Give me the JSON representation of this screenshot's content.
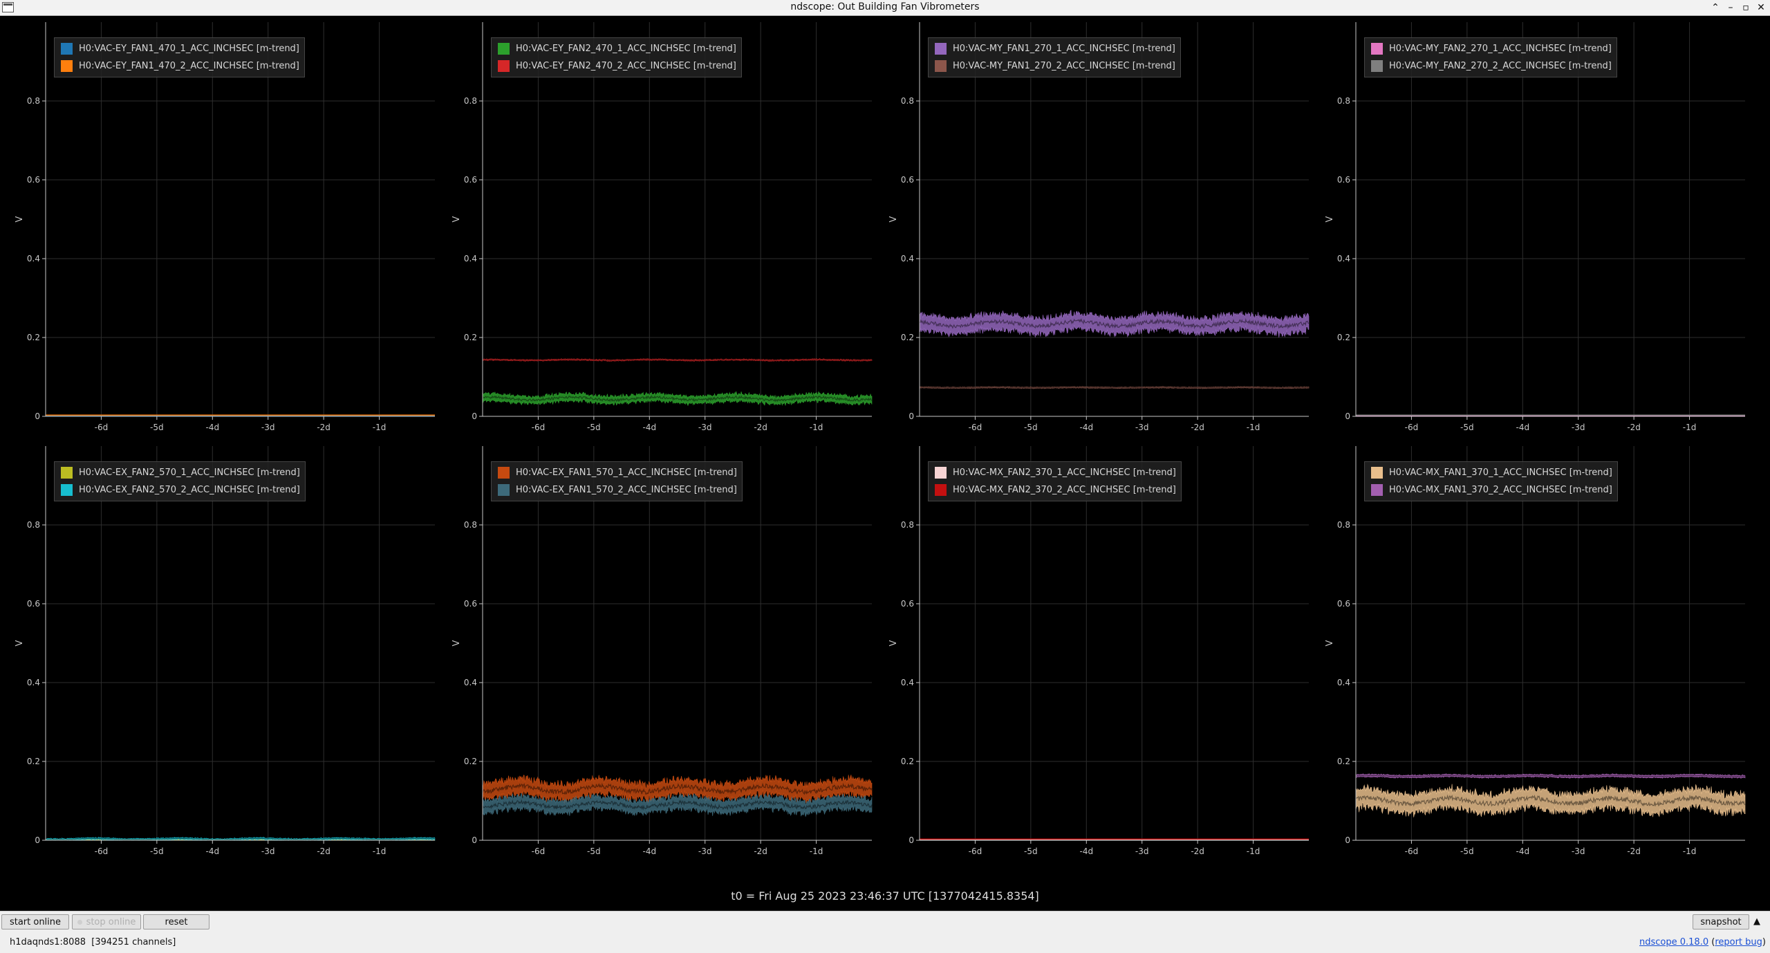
{
  "window": {
    "title": "ndscope: Out Building Fan Vibrometers"
  },
  "colors": {
    "background": "#000000",
    "axis": "#c8c8c8",
    "grid": "#2e2e2e"
  },
  "t0_label": "t0 = Fri Aug 25 2023 23:46:37 UTC [1377042415.8354]",
  "buttons": {
    "start_online": "start online",
    "stop_online": "stop online",
    "reset": "reset",
    "snapshot": "snapshot"
  },
  "status": {
    "server": "h1daqnds1:8088",
    "channels": "[394251 channels]"
  },
  "version": {
    "name": "ndscope 0.18.0",
    "report": "report bug"
  },
  "chart_data": [
    {
      "type": "line",
      "ylabel": "V",
      "ylim": [
        0,
        1
      ],
      "xlim": [
        -7,
        0
      ],
      "yticks": [
        "0",
        "0.2",
        "0.4",
        "0.6",
        "0.8"
      ],
      "xticks": [
        "-6d",
        "-5d",
        "-4d",
        "-3d",
        "-2d",
        "-1d"
      ],
      "series": [
        {
          "name": "H0:VAC-EY_FAN1_470_1_ACC_INCHSEC [m-trend]",
          "color": "#1f77b4",
          "mean": 0.002,
          "spread": 0.0,
          "noise": 0.0
        },
        {
          "name": "H0:VAC-EY_FAN1_470_2_ACC_INCHSEC [m-trend]",
          "color": "#ff7f0e",
          "mean": 0.003,
          "spread": 0.0,
          "noise": 0.0
        }
      ]
    },
    {
      "type": "line",
      "ylabel": "V",
      "ylim": [
        0,
        1
      ],
      "xlim": [
        -7,
        0
      ],
      "yticks": [
        "0",
        "0.2",
        "0.4",
        "0.6",
        "0.8"
      ],
      "xticks": [
        "-6d",
        "-5d",
        "-4d",
        "-3d",
        "-2d",
        "-1d"
      ],
      "series": [
        {
          "name": "H0:VAC-EY_FAN2_470_1_ACC_INCHSEC [m-trend]",
          "color": "#2ca02c",
          "mean": 0.045,
          "spread": 0.012,
          "noise": 0.006
        },
        {
          "name": "H0:VAC-EY_FAN2_470_2_ACC_INCHSEC [m-trend]",
          "color": "#d62728",
          "mean": 0.143,
          "spread": 0.002,
          "noise": 0.0015
        }
      ]
    },
    {
      "type": "line",
      "ylabel": "V",
      "ylim": [
        0,
        1
      ],
      "xlim": [
        -7,
        0
      ],
      "yticks": [
        "0",
        "0.2",
        "0.4",
        "0.6",
        "0.8"
      ],
      "xticks": [
        "-6d",
        "-5d",
        "-4d",
        "-3d",
        "-2d",
        "-1d"
      ],
      "series": [
        {
          "name": "H0:VAC-MY_FAN1_270_1_ACC_INCHSEC [m-trend]",
          "color": "#9467bd",
          "mean": 0.235,
          "spread": 0.025,
          "noise": 0.01
        },
        {
          "name": "H0:VAC-MY_FAN1_270_2_ACC_INCHSEC [m-trend]",
          "color": "#8c564b",
          "mean": 0.073,
          "spread": 0.002,
          "noise": 0.001
        }
      ]
    },
    {
      "type": "line",
      "ylabel": "V",
      "ylim": [
        0,
        1
      ],
      "xlim": [
        -7,
        0
      ],
      "yticks": [
        "0",
        "0.2",
        "0.4",
        "0.6",
        "0.8"
      ],
      "xticks": [
        "-6d",
        "-5d",
        "-4d",
        "-3d",
        "-2d",
        "-1d"
      ],
      "series": [
        {
          "name": "H0:VAC-MY_FAN2_270_1_ACC_INCHSEC [m-trend]",
          "color": "#e377c2",
          "mean": 0.002,
          "spread": 0.0,
          "noise": 0.0
        },
        {
          "name": "H0:VAC-MY_FAN2_270_2_ACC_INCHSEC [m-trend]",
          "color": "#7f7f7f",
          "mean": 0.003,
          "spread": 0.0,
          "noise": 0.0
        }
      ]
    },
    {
      "type": "line",
      "ylabel": "V",
      "ylim": [
        0,
        1
      ],
      "xlim": [
        -7,
        0
      ],
      "yticks": [
        "0",
        "0.2",
        "0.4",
        "0.6",
        "0.8"
      ],
      "xticks": [
        "-6d",
        "-5d",
        "-4d",
        "-3d",
        "-2d",
        "-1d"
      ],
      "series": [
        {
          "name": "H0:VAC-EX_FAN2_570_1_ACC_INCHSEC [m-trend]",
          "color": "#bcbd22",
          "mean": 0.002,
          "spread": 0.0,
          "noise": 0.0
        },
        {
          "name": "H0:VAC-EX_FAN2_570_2_ACC_INCHSEC [m-trend]",
          "color": "#17becf",
          "mean": 0.003,
          "spread": 0.003,
          "noise": 0.002
        }
      ]
    },
    {
      "type": "line",
      "ylabel": "V",
      "ylim": [
        0,
        1
      ],
      "xlim": [
        -7,
        0
      ],
      "yticks": [
        "0",
        "0.2",
        "0.4",
        "0.6",
        "0.8"
      ],
      "xticks": [
        "-6d",
        "-5d",
        "-4d",
        "-3d",
        "-2d",
        "-1d"
      ],
      "series": [
        {
          "name": "H0:VAC-EX_FAN1_570_1_ACC_INCHSEC [m-trend]",
          "color": "#c64a10",
          "mean": 0.13,
          "spread": 0.025,
          "noise": 0.012
        },
        {
          "name": "H0:VAC-EX_FAN1_570_2_ACC_INCHSEC [m-trend]",
          "color": "#3d6a7a",
          "mean": 0.09,
          "spread": 0.02,
          "noise": 0.01
        }
      ]
    },
    {
      "type": "line",
      "ylabel": "V",
      "ylim": [
        0,
        1
      ],
      "xlim": [
        -7,
        0
      ],
      "yticks": [
        "0",
        "0.2",
        "0.4",
        "0.6",
        "0.8"
      ],
      "xticks": [
        "-6d",
        "-5d",
        "-4d",
        "-3d",
        "-2d",
        "-1d"
      ],
      "series": [
        {
          "name": "H0:VAC-MX_FAN2_370_1_ACC_INCHSEC [m-trend]",
          "color": "#f7d4d4",
          "mean": 0.002,
          "spread": 0.0,
          "noise": 0.0
        },
        {
          "name": "H0:VAC-MX_FAN2_370_2_ACC_INCHSEC [m-trend]",
          "color": "#c41010",
          "mean": 0.003,
          "spread": 0.0,
          "noise": 0.0
        }
      ]
    },
    {
      "type": "line",
      "ylabel": "V",
      "ylim": [
        0,
        1
      ],
      "xlim": [
        -7,
        0
      ],
      "yticks": [
        "0",
        "0.2",
        "0.4",
        "0.6",
        "0.8"
      ],
      "xticks": [
        "-6d",
        "-5d",
        "-4d",
        "-3d",
        "-2d",
        "-1d"
      ],
      "series": [
        {
          "name": "H0:VAC-MX_FAN1_370_1_ACC_INCHSEC [m-trend]",
          "color": "#e8be8c",
          "mean": 0.1,
          "spread": 0.03,
          "noise": 0.012
        },
        {
          "name": "H0:VAC-MX_FAN1_370_2_ACC_INCHSEC [m-trend]",
          "color": "#a35fb0",
          "mean": 0.163,
          "spread": 0.004,
          "noise": 0.002
        }
      ]
    }
  ]
}
